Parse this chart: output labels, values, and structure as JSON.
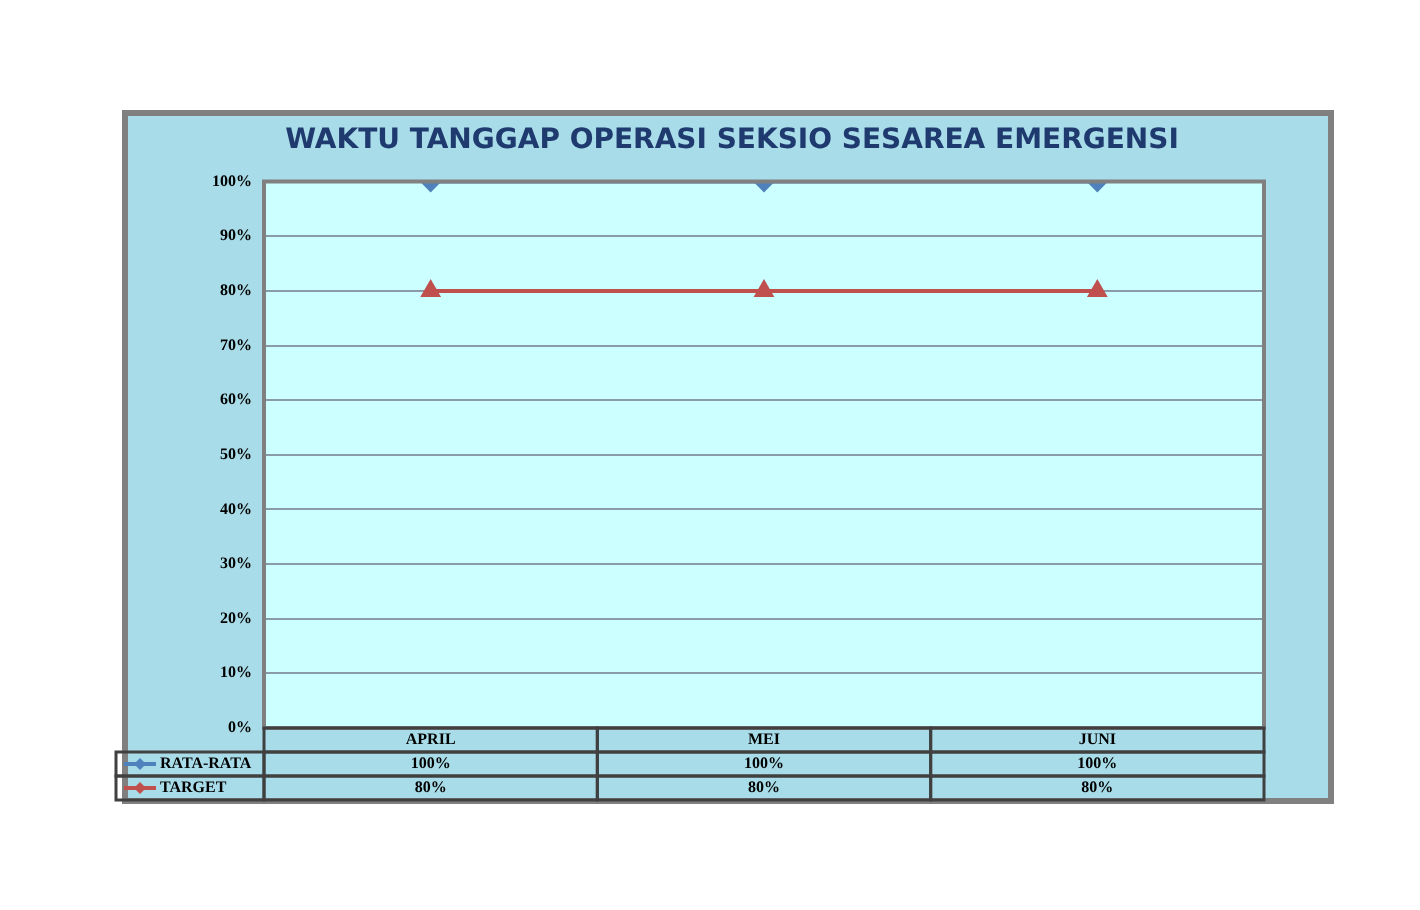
{
  "chart_data": {
    "type": "line",
    "title": "WAKTU TANGGAP OPERASI SEKSIO SESAREA EMERGENSI",
    "categories": [
      "APRIL",
      "MEI",
      "JUNI"
    ],
    "series": [
      {
        "name": "RATA-RATA",
        "color": "#4f81bd",
        "marker": "diamond",
        "values": [
          100,
          100,
          100
        ],
        "value_labels": [
          "100%",
          "100%",
          "100%"
        ]
      },
      {
        "name": "TARGET",
        "color": "#c0504d",
        "marker": "triangle",
        "values": [
          80,
          80,
          80
        ],
        "value_labels": [
          "80%",
          "80%",
          "80%"
        ]
      }
    ],
    "ylim": [
      0,
      100
    ],
    "yticks": [
      {
        "value": 0,
        "label": "0%"
      },
      {
        "value": 10,
        "label": "10%"
      },
      {
        "value": 20,
        "label": "20%"
      },
      {
        "value": 30,
        "label": "30%"
      },
      {
        "value": 40,
        "label": "40%"
      },
      {
        "value": 50,
        "label": "50%"
      },
      {
        "value": 60,
        "label": "60%"
      },
      {
        "value": 70,
        "label": "70%"
      },
      {
        "value": 80,
        "label": "80%"
      },
      {
        "value": 90,
        "label": "90%"
      },
      {
        "value": 100,
        "label": "100%"
      }
    ],
    "grid": "y",
    "legend": "bottom"
  }
}
